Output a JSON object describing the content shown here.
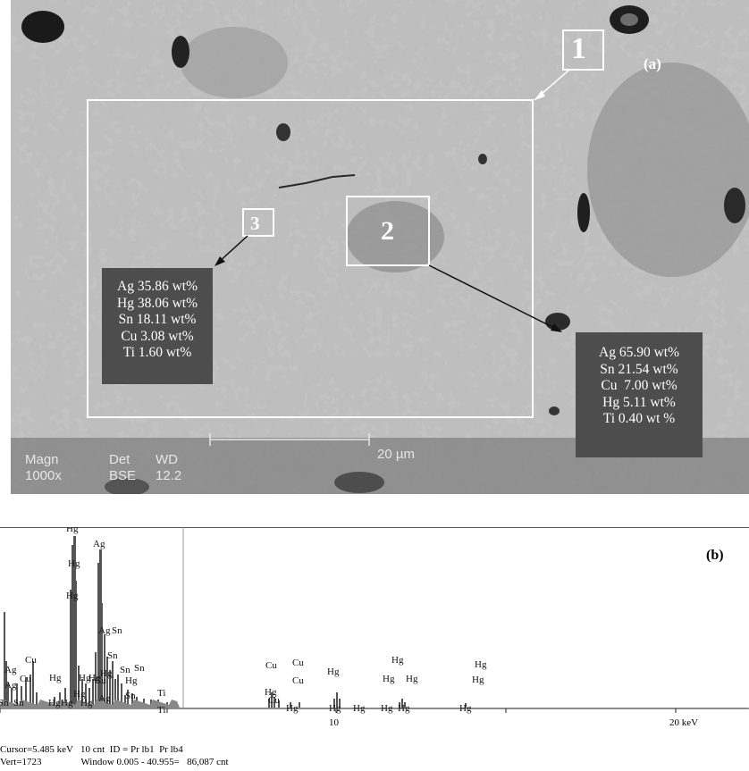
{
  "panel_a": {
    "label": "(a)",
    "regions": {
      "r1": "1",
      "r2": "2",
      "r3": "3"
    },
    "region3_composition": [
      "Ag 35.86 wt%",
      "Hg 38.06 wt%",
      "Sn 18.11 wt%",
      "Cu 3.08 wt%",
      "Ti 1.60 wt%"
    ],
    "region2_composition": [
      "Ag 65.90 wt%",
      "Sn 21.54 wt%",
      "Cu  7.00 wt%",
      "Hg 5.11 wt%",
      "Ti 0.40 wt %"
    ],
    "scale": {
      "magn_label": "Magn",
      "magn_value": "1000x",
      "det_label": "Det",
      "det_value": "BSE",
      "wd_label": "WD",
      "wd_value": "12.2",
      "scale_text": "20 µm"
    }
  },
  "panel_b": {
    "label": "(b)",
    "axis_ticks": [
      "10",
      "20 keV"
    ],
    "peak_labels": [
      "Hg",
      "Ag",
      "Hg",
      "Hg",
      "Ag",
      "Sn",
      "Cu",
      "Ag",
      "Ag",
      "Cu",
      "Sn",
      "Sn",
      "Hg",
      "Hg",
      "Hg",
      "Sn",
      "Sn",
      "Sn",
      "Hg",
      "Ag",
      "Ti",
      "Ti",
      "Hg",
      "Cu",
      "Cu",
      "Cu",
      "Cu",
      "Hg",
      "Hg",
      "Hg",
      "Hg",
      "Hg",
      "Hg",
      "Hg",
      "Hg",
      "Hg",
      "Hg",
      "Hg",
      "Hg",
      "Hg",
      "Sn",
      "Hg",
      "Hg",
      "Hg",
      "Cu",
      "Hg"
    ],
    "footer_line1": "Cursor=5.485 keV   10 cnt  ID = Pr lb1  Pr lb4",
    "footer_line2": "Vert=1723                Window 0.005 - 40.955=   86,087 cnt"
  },
  "colors": {
    "sem_matrix": "#bcbcbc",
    "sem_phase": "#8e8e8e",
    "box_fill": "#4d4d4d",
    "spectrum_fill": "#555555"
  }
}
